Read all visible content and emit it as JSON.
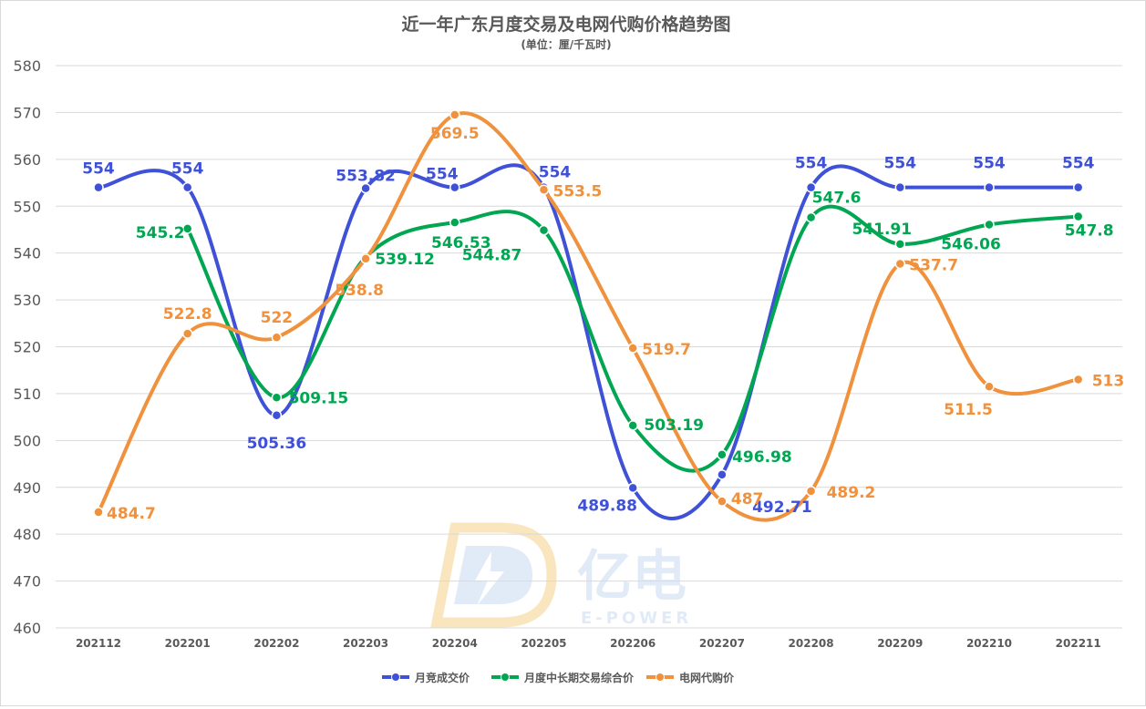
{
  "chart_data": {
    "type": "line",
    "title": "近一年广东月度交易及电网代购价格趋势图",
    "subtitle": "(单位：厘/千瓦时)",
    "categories": [
      "202112",
      "202201",
      "202202",
      "202203",
      "202204",
      "202205",
      "202206",
      "202207",
      "202208",
      "202209",
      "202210",
      "202211"
    ],
    "ylim": [
      460,
      580
    ],
    "yticks": [
      460,
      470,
      480,
      490,
      500,
      510,
      520,
      530,
      540,
      550,
      560,
      570,
      580
    ],
    "grid": true,
    "smooth": true,
    "legend_position": "bottom",
    "series": [
      {
        "name": "月竞成交价",
        "color": "#3f51d6",
        "values": [
          554,
          554,
          505.36,
          553.82,
          554,
          554,
          489.88,
          492.71,
          554,
          554,
          554,
          554
        ],
        "labels": [
          "554",
          "554",
          "505.36",
          "553.82",
          "554",
          "554",
          "489.88",
          "492.71",
          "554",
          "554",
          "554",
          "554"
        ]
      },
      {
        "name": "月度中长期交易综合价",
        "color": "#00a651",
        "values": [
          null,
          545.2,
          509.15,
          539.12,
          546.53,
          544.87,
          503.19,
          496.98,
          547.6,
          541.91,
          546.06,
          547.8
        ],
        "labels": [
          null,
          "545.2",
          "509.15",
          "539.12",
          "546.53",
          "544.87",
          "503.19",
          "496.98",
          "547.6",
          "541.91",
          "546.06",
          "547.8"
        ]
      },
      {
        "name": "电网代购价",
        "color": "#f0913d",
        "values": [
          484.7,
          522.8,
          522,
          538.8,
          569.5,
          553.5,
          519.7,
          487,
          489.2,
          537.7,
          511.5,
          513
        ],
        "labels": [
          "484.7",
          "522.8",
          "522",
          "538.8",
          "569.5",
          "553.5",
          "519.7",
          "487",
          "489.2",
          "537.7",
          "511.5",
          "513"
        ]
      }
    ]
  },
  "watermark": {
    "logo_text": "亿电",
    "logo_subtext": "E-POWER",
    "color": "#c9dcf2"
  }
}
